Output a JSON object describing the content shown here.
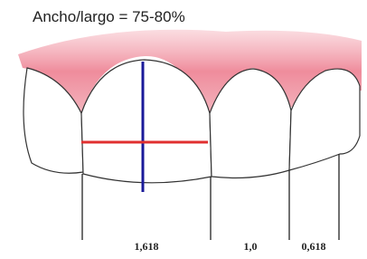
{
  "title": "Ancho/largo = 75-80%",
  "labels": [
    "1,618",
    "1,0",
    "0,618"
  ]
}
